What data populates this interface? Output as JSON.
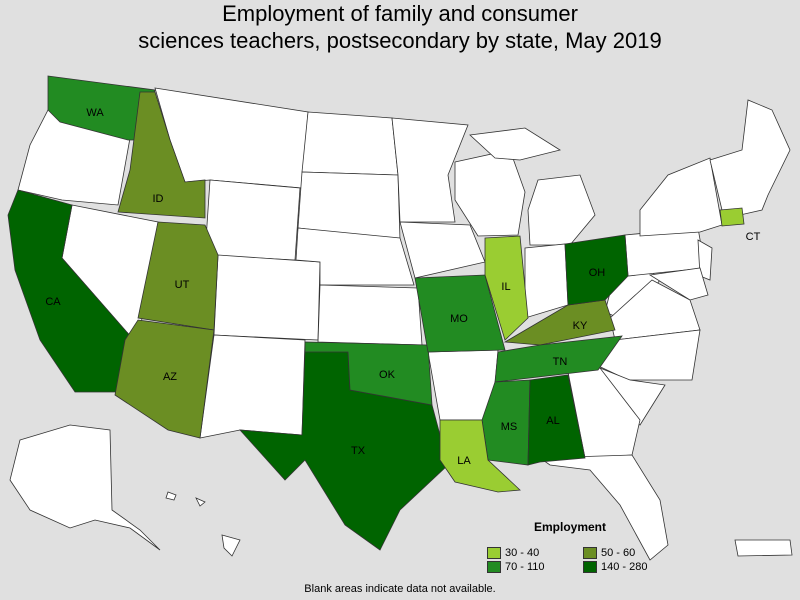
{
  "title": {
    "line1": "Employment of family and consumer",
    "line2": "sciences teachers, postsecondary by state, May 2019"
  },
  "legend": {
    "title": "Employment",
    "bins": [
      {
        "label": "30 - 40",
        "color": "#9acd32"
      },
      {
        "label": "50 - 60",
        "color": "#6b8e23"
      },
      {
        "label": "70 - 110",
        "color": "#228b22"
      },
      {
        "label": "140 - 280",
        "color": "#006400"
      }
    ]
  },
  "states": [
    {
      "abbr": "WA",
      "bin": 2
    },
    {
      "abbr": "ID",
      "bin": 1
    },
    {
      "abbr": "CA",
      "bin": 3
    },
    {
      "abbr": "UT",
      "bin": 1
    },
    {
      "abbr": "AZ",
      "bin": 1
    },
    {
      "abbr": "TX",
      "bin": 3
    },
    {
      "abbr": "OK",
      "bin": 2
    },
    {
      "abbr": "MO",
      "bin": 2
    },
    {
      "abbr": "IL",
      "bin": 0
    },
    {
      "abbr": "KY",
      "bin": 1
    },
    {
      "abbr": "TN",
      "bin": 2
    },
    {
      "abbr": "MS",
      "bin": 2
    },
    {
      "abbr": "AL",
      "bin": 3
    },
    {
      "abbr": "LA",
      "bin": 0
    },
    {
      "abbr": "OH",
      "bin": 3
    },
    {
      "abbr": "CT",
      "bin": 0
    }
  ],
  "footnote": "Blank areas indicate data not available."
}
